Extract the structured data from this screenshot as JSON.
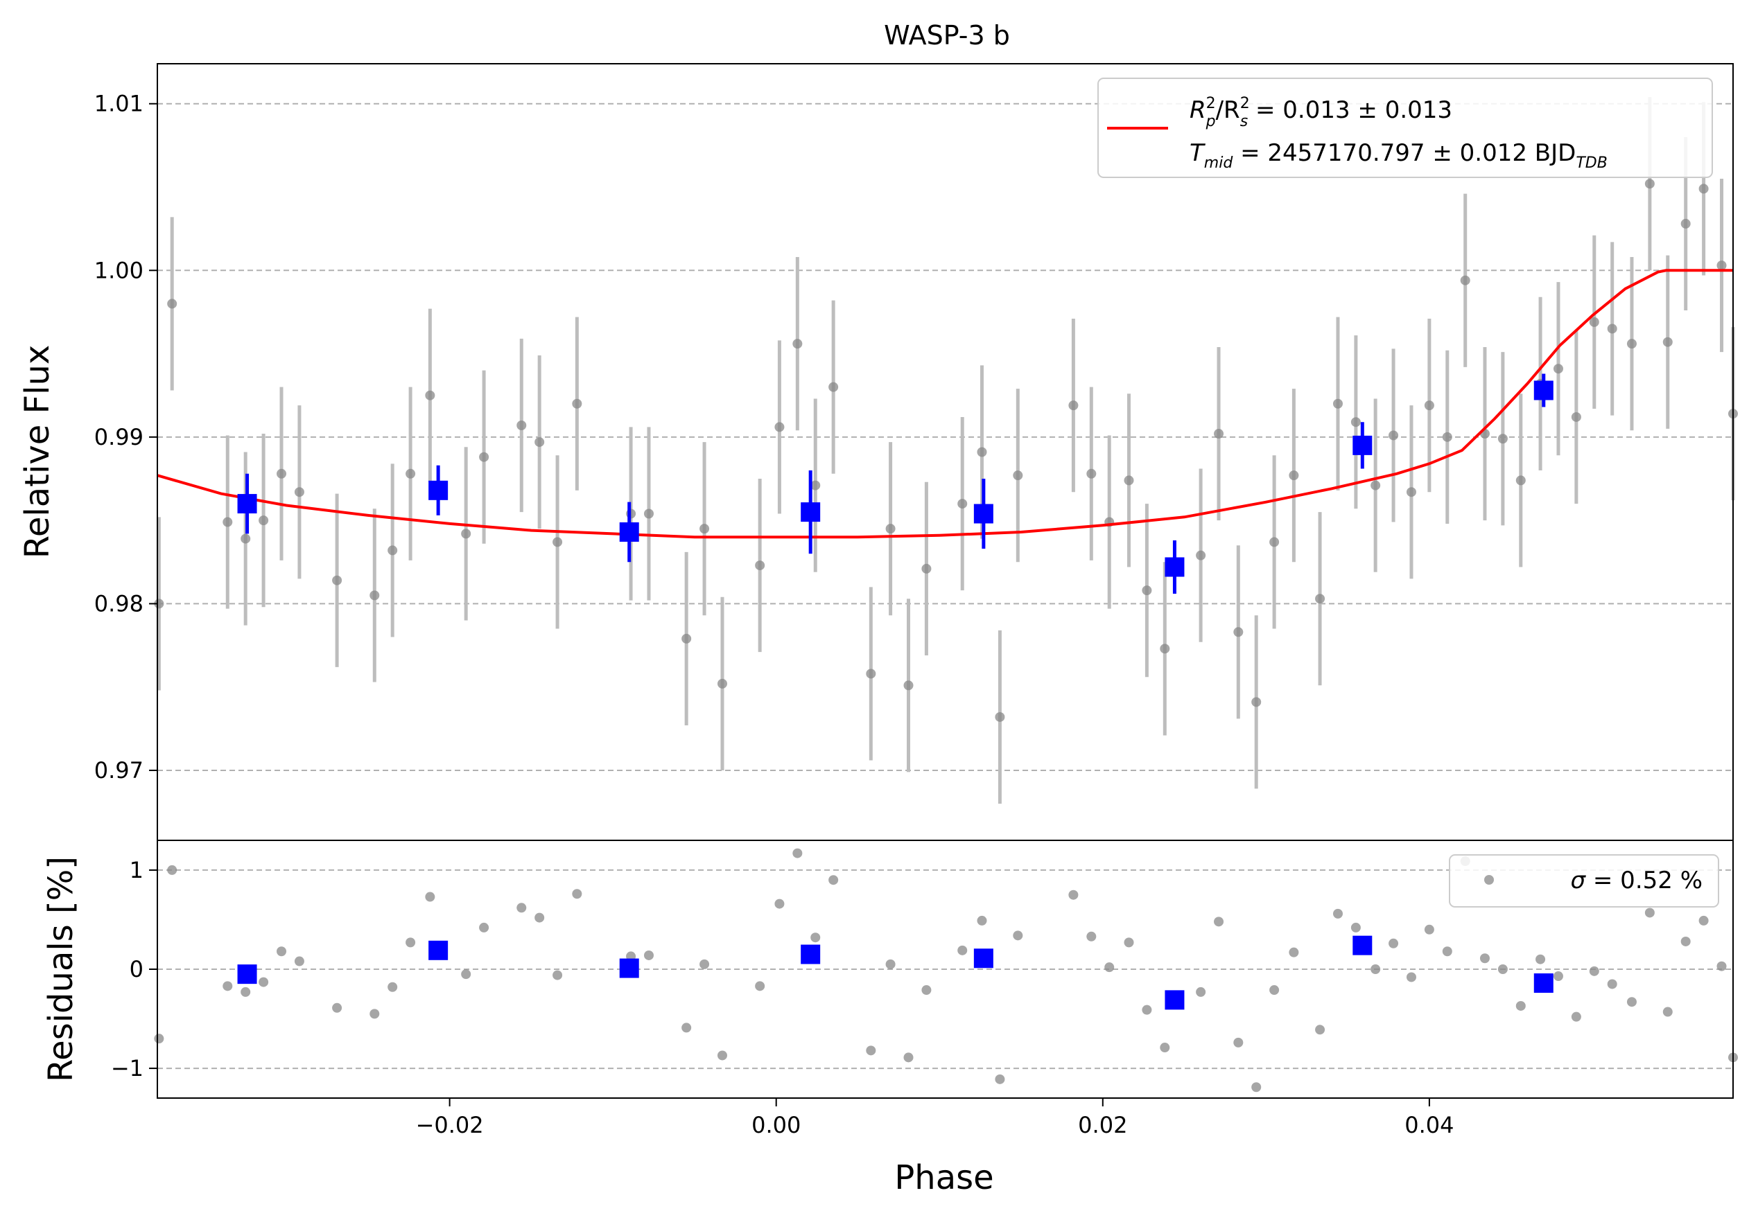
{
  "title": "WASP-3 b",
  "colors": {
    "data_points": "#888888",
    "error_bars": "#bdbdbd",
    "binned": "#0000ff",
    "model": "#ff0000",
    "grid": "#b0b0b0"
  },
  "legend_main": {
    "line1": {
      "R": "R",
      "p_sup": "2",
      "p_sub": "p",
      "sep": "/R",
      "s_sup": "2",
      "s_sub": "s",
      "value": " = 0.013 ± 0.013"
    },
    "line2": {
      "T": "T",
      "T_sub": "mid",
      "value": " = 2457170.797 ± 0.012 BJD",
      "value_sub": "TDB"
    }
  },
  "legend_resid": {
    "sigma": "σ",
    "value": " = 0.52 %"
  },
  "chart_data": [
    {
      "type": "scatter",
      "panel": "top",
      "title": "WASP-3 b",
      "xlabel": "Phase",
      "ylabel": "Relative Flux",
      "xlim": [
        -0.0379,
        0.0586
      ],
      "ylim": [
        0.9658,
        1.0124
      ],
      "xticks": [
        -0.02,
        0.0,
        0.02,
        0.04
      ],
      "xtick_labels": [
        "−0.02",
        "0.00",
        "0.02",
        "0.04"
      ],
      "yticks": [
        0.97,
        0.98,
        0.99,
        1.0,
        1.01
      ],
      "ytick_labels": [
        "0.97",
        "0.98",
        "0.99",
        "1.00",
        "1.01"
      ],
      "grid": "horizontal dashed",
      "legend_position": "top-right",
      "series": [
        {
          "name": "data",
          "marker": "circle",
          "x": [
            -0.0378,
            -0.037,
            -0.0336,
            -0.0325,
            -0.0314,
            -0.0303,
            -0.0292,
            -0.0269,
            -0.0246,
            -0.0235,
            -0.0224,
            -0.0212,
            -0.019,
            -0.0179,
            -0.0156,
            -0.0145,
            -0.0134,
            -0.0122,
            -0.0089,
            -0.0078,
            -0.0055,
            -0.0044,
            -0.0033,
            -0.001,
            0.0002,
            0.0013,
            0.0024,
            0.0035,
            0.0058,
            0.007,
            0.0081,
            0.0092,
            0.0114,
            0.0126,
            0.0137,
            0.0148,
            0.0182,
            0.0193,
            0.0204,
            0.0216,
            0.0227,
            0.0238,
            0.026,
            0.0271,
            0.0283,
            0.0294,
            0.0305,
            0.0317,
            0.0333,
            0.0344,
            0.0355,
            0.0367,
            0.0378,
            0.0389,
            0.04,
            0.0411,
            0.0422,
            0.0434,
            0.0445,
            0.0456,
            0.0468,
            0.0479,
            0.049,
            0.0501,
            0.0512,
            0.0524,
            0.0535,
            0.0546,
            0.0557,
            0.0568,
            0.0579,
            0.0586
          ],
          "y": [
            0.98,
            0.998,
            0.9849,
            0.9839,
            0.985,
            0.9878,
            0.9867,
            0.9814,
            0.9805,
            0.9832,
            0.9878,
            0.9925,
            0.9842,
            0.9888,
            0.9907,
            0.9897,
            0.9837,
            0.992,
            0.9854,
            0.9854,
            0.9779,
            0.9845,
            0.9752,
            0.9823,
            0.9906,
            0.9956,
            0.9871,
            0.993,
            0.9758,
            0.9845,
            0.9751,
            0.9821,
            0.986,
            0.9891,
            0.9732,
            0.9877,
            0.9919,
            0.9878,
            0.9849,
            0.9874,
            0.9808,
            0.9773,
            0.9829,
            0.9902,
            0.9783,
            0.9741,
            0.9837,
            0.9877,
            0.9803,
            0.992,
            0.9909,
            0.9871,
            0.9901,
            0.9867,
            0.9919,
            0.99,
            0.9994,
            0.9902,
            0.9899,
            0.9874,
            0.9932,
            0.9941,
            0.9912,
            0.9969,
            0.9965,
            0.9956,
            1.0052,
            0.9957,
            1.0028,
            1.0049,
            1.0003,
            0.9914
          ],
          "yerr": 0.0052
        },
        {
          "name": "binned",
          "marker": "square",
          "x": [
            -0.0324,
            -0.0207,
            -0.009,
            0.0021,
            0.0127,
            0.0244,
            0.0359,
            0.047
          ],
          "y": [
            0.986,
            0.9868,
            0.9843,
            0.9855,
            0.9854,
            0.9822,
            0.9895,
            0.9928
          ],
          "yerr": [
            0.0018,
            0.0015,
            0.0018,
            0.0025,
            0.0021,
            0.0016,
            0.0014,
            0.001
          ]
        },
        {
          "name": "R_p^2/R_s^2 = 0.013 ± 0.013, T_mid = 2457170.797 ± 0.012 BJD_TDB",
          "type": "line",
          "x": [
            -0.0379,
            -0.034,
            -0.03,
            -0.025,
            -0.02,
            -0.015,
            -0.01,
            -0.005,
            0.0,
            0.005,
            0.01,
            0.015,
            0.02,
            0.025,
            0.03,
            0.034,
            0.038,
            0.04,
            0.042,
            0.044,
            0.046,
            0.048,
            0.05,
            0.052,
            0.054,
            0.0545,
            0.0586
          ],
          "y": [
            0.9877,
            0.9866,
            0.9859,
            0.9853,
            0.9848,
            0.9844,
            0.9842,
            0.984,
            0.984,
            0.984,
            0.9841,
            0.9843,
            0.9847,
            0.9852,
            0.9861,
            0.9869,
            0.9878,
            0.9884,
            0.9892,
            0.9911,
            0.9932,
            0.9955,
            0.9973,
            0.9989,
            0.9999,
            1.0,
            1.0
          ]
        }
      ]
    },
    {
      "type": "scatter",
      "panel": "bottom",
      "xlabel": "Phase",
      "ylabel": "Residuals [%]",
      "xlim": [
        -0.0379,
        0.0586
      ],
      "ylim": [
        -1.3,
        1.3
      ],
      "yticks": [
        -1,
        0,
        1
      ],
      "ytick_labels": [
        "−1",
        "0",
        "1"
      ],
      "grid": "horizontal dashed",
      "legend_position": "top-right",
      "series": [
        {
          "name": "σ = 0.52 %",
          "marker": "circle",
          "x": [
            -0.0378,
            -0.037,
            -0.0336,
            -0.0325,
            -0.0314,
            -0.0303,
            -0.0292,
            -0.0269,
            -0.0246,
            -0.0235,
            -0.0224,
            -0.0212,
            -0.019,
            -0.0179,
            -0.0156,
            -0.0145,
            -0.0134,
            -0.0122,
            -0.0089,
            -0.0078,
            -0.0055,
            -0.0044,
            -0.0033,
            -0.001,
            0.0002,
            0.0013,
            0.0024,
            0.0035,
            0.0058,
            0.007,
            0.0081,
            0.0092,
            0.0114,
            0.0126,
            0.0137,
            0.0148,
            0.0182,
            0.0193,
            0.0204,
            0.0216,
            0.0227,
            0.0238,
            0.026,
            0.0271,
            0.0283,
            0.0294,
            0.0305,
            0.0317,
            0.0333,
            0.0344,
            0.0355,
            0.0367,
            0.0378,
            0.0389,
            0.04,
            0.0411,
            0.0422,
            0.0434,
            0.0445,
            0.0456,
            0.0468,
            0.0479,
            0.049,
            0.0501,
            0.0512,
            0.0524,
            0.0535,
            0.0546,
            0.0557,
            0.0568,
            0.0579,
            0.0586
          ],
          "y": [
            -0.7,
            1.0,
            -0.17,
            -0.23,
            -0.13,
            0.18,
            0.08,
            -0.39,
            -0.45,
            -0.18,
            0.27,
            0.73,
            -0.05,
            0.42,
            0.62,
            0.52,
            -0.06,
            0.76,
            0.13,
            0.14,
            -0.59,
            0.05,
            -0.87,
            -0.17,
            0.66,
            1.17,
            0.32,
            0.9,
            -0.82,
            0.05,
            -0.89,
            -0.21,
            0.19,
            0.49,
            -1.11,
            0.34,
            0.75,
            0.33,
            0.02,
            0.27,
            -0.41,
            -0.79,
            -0.23,
            0.48,
            -0.74,
            -1.19,
            -0.21,
            0.17,
            -0.61,
            0.56,
            0.42,
            0.0,
            0.26,
            -0.08,
            0.4,
            0.18,
            1.09,
            0.11,
            0.0,
            -0.37,
            0.1,
            -0.07,
            -0.48,
            -0.02,
            -0.15,
            -0.33,
            0.57,
            -0.43,
            0.28,
            0.49,
            0.03,
            -0.89
          ]
        },
        {
          "name": "binned",
          "marker": "square",
          "x": [
            -0.0324,
            -0.0207,
            -0.009,
            0.0021,
            0.0127,
            0.0244,
            0.0359,
            0.047
          ],
          "y": [
            -0.05,
            0.19,
            0.01,
            0.15,
            0.11,
            -0.31,
            0.24,
            -0.14
          ]
        }
      ]
    }
  ]
}
